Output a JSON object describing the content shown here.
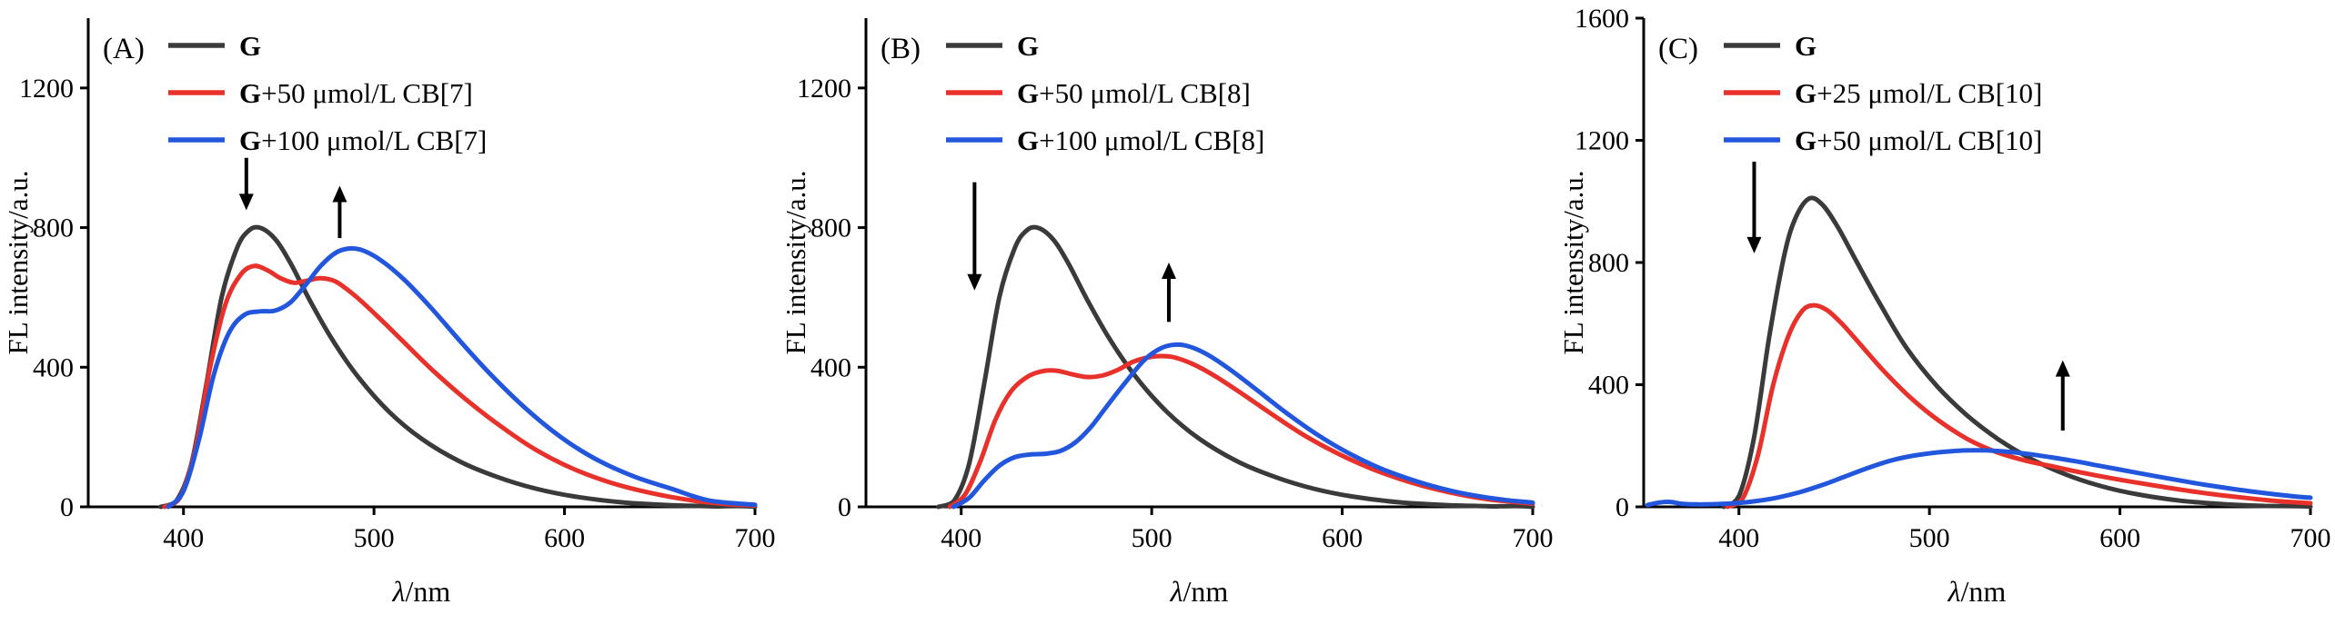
{
  "figure": {
    "background": "#ffffff"
  },
  "shared": {
    "ylabel": "FL intensity/a.u.",
    "xlabel_italic": "λ",
    "xlabel_rest": "/nm"
  },
  "chart_data": [
    {
      "type": "line",
      "panel_label": "(A)",
      "xlabel": "λ/nm",
      "ylabel": "FL intensity/a.u.",
      "x_range": [
        350,
        700
      ],
      "y_range": [
        0,
        1400
      ],
      "x_ticks": [
        400,
        500,
        600,
        700
      ],
      "y_ticks": [
        0,
        400,
        800,
        1200
      ],
      "legend": [
        {
          "bold": "G",
          "rest": "",
          "color": "#3a3a3a"
        },
        {
          "bold": "G",
          "rest": "+50 μmol/L CB[7]",
          "color": "#e8312b"
        },
        {
          "bold": "G",
          "rest": "+100 μmol/L CB[7]",
          "color": "#2257dd"
        }
      ],
      "series": [
        {
          "name": "G",
          "color": "#3a3a3a",
          "points": [
            [
              388,
              0
            ],
            [
              396,
              15
            ],
            [
              404,
              120
            ],
            [
              412,
              350
            ],
            [
              420,
              600
            ],
            [
              428,
              740
            ],
            [
              434,
              790
            ],
            [
              440,
              800
            ],
            [
              448,
              768
            ],
            [
              456,
              700
            ],
            [
              466,
              595
            ],
            [
              478,
              480
            ],
            [
              492,
              370
            ],
            [
              508,
              272
            ],
            [
              525,
              195
            ],
            [
              545,
              130
            ],
            [
              565,
              85
            ],
            [
              585,
              52
            ],
            [
              605,
              30
            ],
            [
              630,
              13
            ],
            [
              655,
              5
            ],
            [
              680,
              1
            ],
            [
              700,
              0
            ]
          ]
        },
        {
          "name": "G+50 μmol/L CB[7]",
          "color": "#e8312b",
          "points": [
            [
              390,
              0
            ],
            [
              398,
              25
            ],
            [
              406,
              160
            ],
            [
              414,
              400
            ],
            [
              422,
              580
            ],
            [
              430,
              665
            ],
            [
              437,
              690
            ],
            [
              444,
              678
            ],
            [
              451,
              655
            ],
            [
              458,
              642
            ],
            [
              465,
              648
            ],
            [
              472,
              655
            ],
            [
              480,
              645
            ],
            [
              490,
              605
            ],
            [
              502,
              545
            ],
            [
              516,
              470
            ],
            [
              532,
              385
            ],
            [
              550,
              300
            ],
            [
              568,
              225
            ],
            [
              586,
              160
            ],
            [
              605,
              108
            ],
            [
              625,
              68
            ],
            [
              645,
              40
            ],
            [
              665,
              20
            ],
            [
              685,
              8
            ],
            [
              700,
              4
            ]
          ]
        },
        {
          "name": "G+100 μmol/L CB[7]",
          "color": "#2257dd",
          "points": [
            [
              392,
              0
            ],
            [
              400,
              45
            ],
            [
              408,
              190
            ],
            [
              416,
              380
            ],
            [
              424,
              500
            ],
            [
              432,
              550
            ],
            [
              440,
              560
            ],
            [
              448,
              562
            ],
            [
              456,
              585
            ],
            [
              464,
              635
            ],
            [
              472,
              690
            ],
            [
              480,
              728
            ],
            [
              487,
              740
            ],
            [
              494,
              735
            ],
            [
              504,
              705
            ],
            [
              516,
              650
            ],
            [
              530,
              570
            ],
            [
              546,
              470
            ],
            [
              562,
              375
            ],
            [
              580,
              280
            ],
            [
              598,
              200
            ],
            [
              616,
              138
            ],
            [
              636,
              88
            ],
            [
              656,
              52
            ],
            [
              676,
              18
            ],
            [
              700,
              6
            ]
          ]
        }
      ],
      "arrows": [
        {
          "x": 433,
          "from": 1000,
          "to": 850
        },
        {
          "x": 482,
          "from": 770,
          "to": 920
        }
      ]
    },
    {
      "type": "line",
      "panel_label": "(B)",
      "xlabel": "λ/nm",
      "ylabel": "FL intensity/a.u.",
      "x_range": [
        350,
        700
      ],
      "y_range": [
        0,
        1400
      ],
      "x_ticks": [
        400,
        500,
        600,
        700
      ],
      "y_ticks": [
        0,
        400,
        800,
        1200
      ],
      "legend": [
        {
          "bold": "G",
          "rest": "",
          "color": "#3a3a3a"
        },
        {
          "bold": "G",
          "rest": "+50 μmol/L CB[8]",
          "color": "#e8312b"
        },
        {
          "bold": "G",
          "rest": "+100 μmol/L CB[8]",
          "color": "#2257dd"
        }
      ],
      "series": [
        {
          "name": "G",
          "color": "#3a3a3a",
          "points": [
            [
              388,
              0
            ],
            [
              396,
              15
            ],
            [
              404,
              120
            ],
            [
              412,
              350
            ],
            [
              420,
              600
            ],
            [
              428,
              740
            ],
            [
              434,
              790
            ],
            [
              440,
              800
            ],
            [
              448,
              768
            ],
            [
              456,
              700
            ],
            [
              466,
              595
            ],
            [
              478,
              480
            ],
            [
              492,
              370
            ],
            [
              508,
              272
            ],
            [
              525,
              195
            ],
            [
              545,
              130
            ],
            [
              565,
              85
            ],
            [
              585,
              52
            ],
            [
              605,
              30
            ],
            [
              630,
              13
            ],
            [
              655,
              5
            ],
            [
              680,
              1
            ],
            [
              700,
              0
            ]
          ]
        },
        {
          "name": "G+50 μmol/L CB[8]",
          "color": "#e8312b",
          "points": [
            [
              394,
              0
            ],
            [
              402,
              35
            ],
            [
              410,
              130
            ],
            [
              418,
              250
            ],
            [
              426,
              330
            ],
            [
              434,
              370
            ],
            [
              442,
              388
            ],
            [
              450,
              390
            ],
            [
              458,
              380
            ],
            [
              466,
              372
            ],
            [
              474,
              376
            ],
            [
              482,
              392
            ],
            [
              490,
              415
            ],
            [
              498,
              428
            ],
            [
              505,
              432
            ],
            [
              512,
              428
            ],
            [
              522,
              408
            ],
            [
              534,
              372
            ],
            [
              548,
              322
            ],
            [
              564,
              262
            ],
            [
              580,
              205
            ],
            [
              598,
              152
            ],
            [
              616,
              108
            ],
            [
              636,
              70
            ],
            [
              656,
              42
            ],
            [
              676,
              22
            ],
            [
              700,
              9
            ]
          ]
        },
        {
          "name": "G+100 μmol/L CB[8]",
          "color": "#2257dd",
          "points": [
            [
              396,
              0
            ],
            [
              404,
              25
            ],
            [
              412,
              75
            ],
            [
              420,
              118
            ],
            [
              428,
              142
            ],
            [
              436,
              150
            ],
            [
              444,
              152
            ],
            [
              452,
              160
            ],
            [
              460,
              185
            ],
            [
              468,
              228
            ],
            [
              476,
              285
            ],
            [
              486,
              355
            ],
            [
              496,
              420
            ],
            [
              504,
              452
            ],
            [
              511,
              464
            ],
            [
              518,
              462
            ],
            [
              528,
              440
            ],
            [
              540,
              398
            ],
            [
              554,
              340
            ],
            [
              570,
              272
            ],
            [
              586,
              210
            ],
            [
              604,
              152
            ],
            [
              622,
              106
            ],
            [
              642,
              68
            ],
            [
              662,
              40
            ],
            [
              682,
              22
            ],
            [
              700,
              12
            ]
          ]
        }
      ],
      "arrows": [
        {
          "x": 407,
          "from": 930,
          "to": 620
        },
        {
          "x": 509,
          "from": 530,
          "to": 700
        }
      ]
    },
    {
      "type": "line",
      "panel_label": "(C)",
      "xlabel": "λ/nm",
      "ylabel": "FL intensity/a.u.",
      "x_range": [
        350,
        700
      ],
      "y_range": [
        0,
        1600
      ],
      "x_ticks": [
        400,
        500,
        600,
        700
      ],
      "y_ticks": [
        0,
        400,
        800,
        1200,
        1600
      ],
      "legend": [
        {
          "bold": "G",
          "rest": "",
          "color": "#3a3a3a"
        },
        {
          "bold": "G",
          "rest": "+25 μmol/L CB[10]",
          "color": "#e8312b"
        },
        {
          "bold": "G",
          "rest": "+50 μmol/L CB[10]",
          "color": "#2257dd"
        }
      ],
      "series": [
        {
          "name": "G",
          "color": "#3a3a3a",
          "points": [
            [
              392,
              0
            ],
            [
              400,
              35
            ],
            [
              408,
              230
            ],
            [
              416,
              560
            ],
            [
              424,
              830
            ],
            [
              430,
              950
            ],
            [
              437,
              1010
            ],
            [
              444,
              988
            ],
            [
              452,
              915
            ],
            [
              462,
              800
            ],
            [
              474,
              665
            ],
            [
              488,
              520
            ],
            [
              504,
              395
            ],
            [
              520,
              298
            ],
            [
              536,
              222
            ],
            [
              554,
              155
            ],
            [
              572,
              105
            ],
            [
              590,
              68
            ],
            [
              610,
              40
            ],
            [
              632,
              20
            ],
            [
              654,
              9
            ],
            [
              676,
              3
            ],
            [
              700,
              1
            ]
          ]
        },
        {
          "name": "G+25 μmol/L CB[10]",
          "color": "#e8312b",
          "points": [
            [
              394,
              0
            ],
            [
              402,
              28
            ],
            [
              410,
              170
            ],
            [
              418,
              400
            ],
            [
              426,
              560
            ],
            [
              433,
              640
            ],
            [
              439,
              660
            ],
            [
              446,
              645
            ],
            [
              454,
              600
            ],
            [
              464,
              530
            ],
            [
              476,
              445
            ],
            [
              490,
              358
            ],
            [
              505,
              282
            ],
            [
              520,
              222
            ],
            [
              535,
              180
            ],
            [
              550,
              152
            ],
            [
              565,
              132
            ],
            [
              580,
              112
            ],
            [
              596,
              93
            ],
            [
              612,
              76
            ],
            [
              630,
              58
            ],
            [
              648,
              42
            ],
            [
              666,
              29
            ],
            [
              684,
              18
            ],
            [
              700,
              12
            ]
          ]
        },
        {
          "name": "G+50 μmol/L CB[10]",
          "color": "#2257dd",
          "points": [
            [
              352,
              6
            ],
            [
              358,
              14
            ],
            [
              364,
              16
            ],
            [
              370,
              10
            ],
            [
              378,
              8
            ],
            [
              388,
              9
            ],
            [
              398,
              12
            ],
            [
              408,
              18
            ],
            [
              420,
              30
            ],
            [
              432,
              48
            ],
            [
              444,
              72
            ],
            [
              456,
              100
            ],
            [
              468,
              128
            ],
            [
              480,
              152
            ],
            [
              492,
              168
            ],
            [
              504,
              178
            ],
            [
              516,
              184
            ],
            [
              528,
              185
            ],
            [
              540,
              181
            ],
            [
              552,
              173
            ],
            [
              564,
              162
            ],
            [
              576,
              150
            ],
            [
              588,
              136
            ],
            [
              600,
              122
            ],
            [
              614,
              106
            ],
            [
              628,
              90
            ],
            [
              644,
              73
            ],
            [
              660,
              58
            ],
            [
              676,
              45
            ],
            [
              692,
              34
            ],
            [
              700,
              30
            ]
          ]
        }
      ],
      "arrows": [
        {
          "x": 408,
          "from": 1130,
          "to": 830
        },
        {
          "x": 570,
          "from": 250,
          "to": 480
        }
      ]
    }
  ]
}
